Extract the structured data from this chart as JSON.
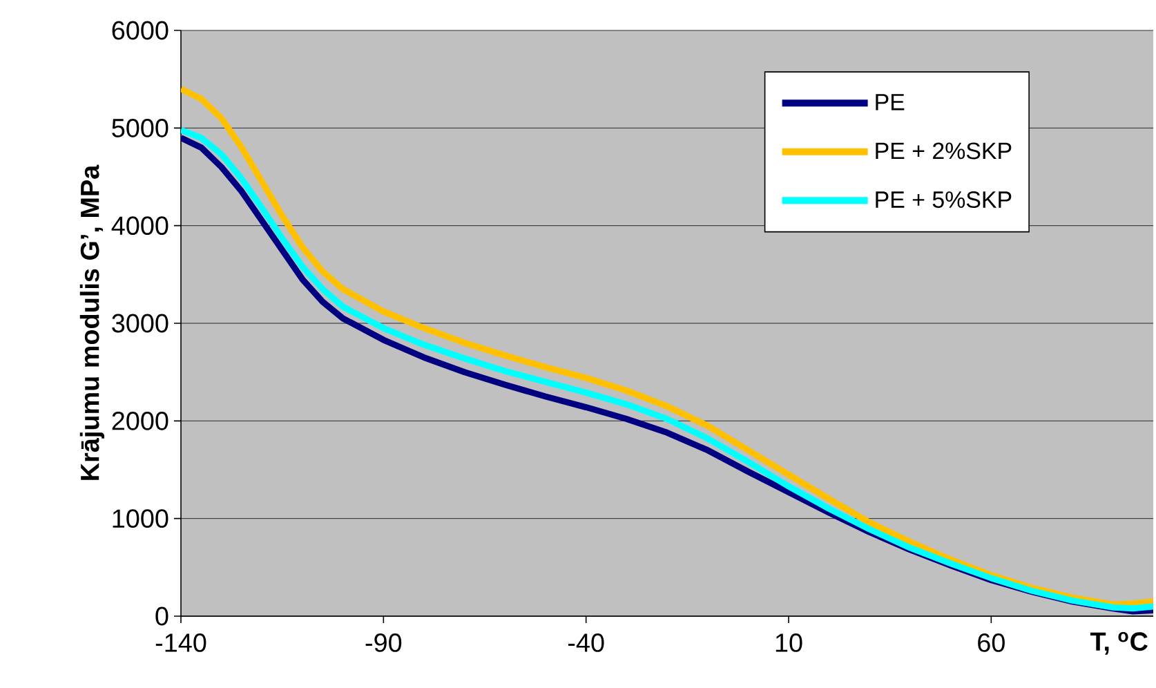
{
  "chart_data": {
    "type": "line",
    "xlabel": "T, $^{o}$C",
    "ylabel": "Krājumu modulis G’, MPa",
    "x": [
      -140,
      -135,
      -130,
      -125,
      -120,
      -115,
      -110,
      -105,
      -100,
      -90,
      -80,
      -70,
      -60,
      -50,
      -40,
      -30,
      -20,
      -10,
      0,
      10,
      20,
      30,
      40,
      50,
      60,
      70,
      80,
      90,
      95,
      100
    ],
    "xlim": [
      -140,
      100
    ],
    "xticks": [
      -140,
      -90,
      -40,
      10,
      60
    ],
    "ylim": [
      0,
      6000
    ],
    "yticks": [
      0,
      1000,
      2000,
      3000,
      4000,
      5000,
      6000
    ],
    "grid": "y",
    "legend": "top right",
    "series": [
      {
        "name": "PE",
        "color": "#000080",
        "values": [
          4900,
          4800,
          4600,
          4350,
          4050,
          3750,
          3450,
          3220,
          3050,
          2830,
          2650,
          2500,
          2370,
          2250,
          2140,
          2020,
          1880,
          1700,
          1480,
          1270,
          1060,
          860,
          680,
          520,
          370,
          250,
          150,
          80,
          50,
          60
        ]
      },
      {
        "name": "PE + 2%SKP",
        "color": "#ffc000",
        "values": [
          5400,
          5300,
          5100,
          4800,
          4450,
          4100,
          3780,
          3530,
          3350,
          3120,
          2950,
          2800,
          2670,
          2550,
          2440,
          2310,
          2150,
          1950,
          1700,
          1450,
          1200,
          960,
          760,
          580,
          420,
          290,
          190,
          120,
          130,
          150
        ]
      },
      {
        "name": "PE + 5%SKP",
        "color": "#00ffff",
        "values": [
          4980,
          4900,
          4730,
          4480,
          4180,
          3870,
          3580,
          3350,
          3170,
          2950,
          2780,
          2640,
          2510,
          2400,
          2290,
          2170,
          2020,
          1820,
          1580,
          1330,
          1100,
          890,
          700,
          540,
          390,
          260,
          160,
          90,
          80,
          100
        ]
      }
    ]
  }
}
